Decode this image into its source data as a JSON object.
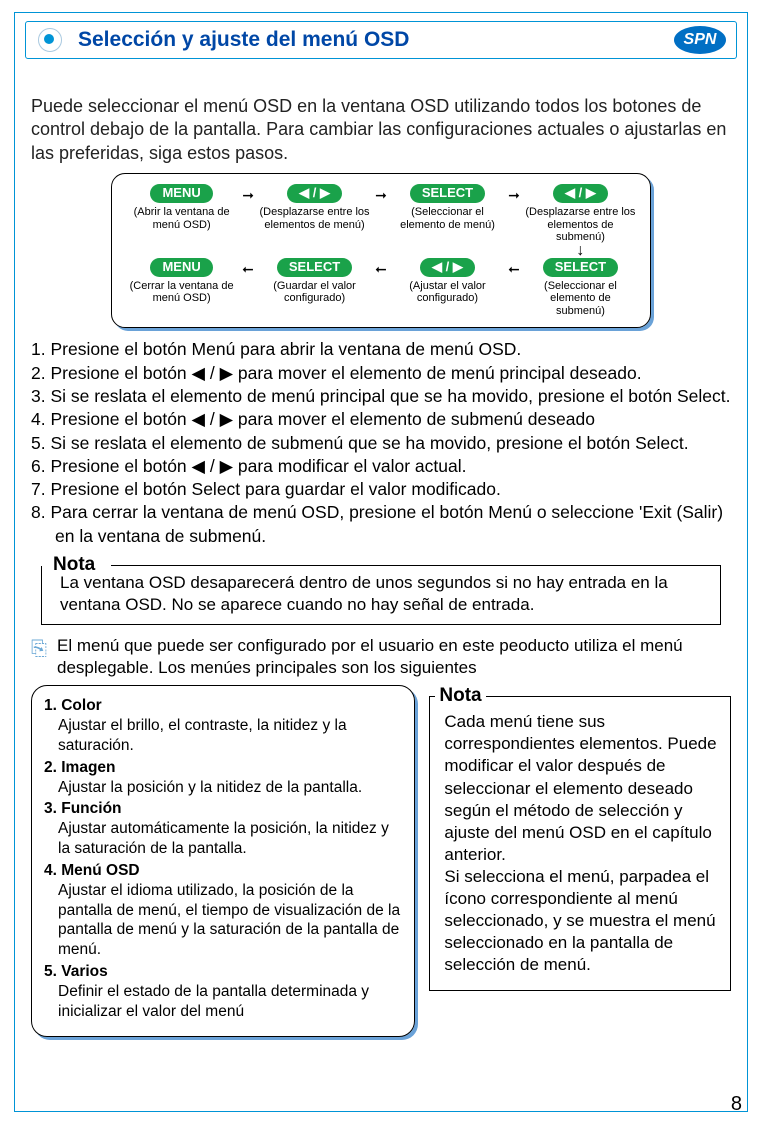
{
  "header": {
    "title": "Selección y ajuste del menú OSD",
    "lang_badge": "SPN"
  },
  "intro": "Puede seleccionar el menú OSD en la ventana OSD utilizando todos los botones de control debajo de la pantalla. Para cambiar las configuraciones actuales o ajustarlas en las preferidas, siga estos pasos.",
  "flow": {
    "row1": [
      {
        "label": "MENU",
        "caption": "(Abrir  la ventana de menú OSD)"
      },
      {
        "label": "◀ / ▶",
        "caption": "(Desplazarse entre los elementos de menú)"
      },
      {
        "label": "SELECT",
        "caption": "(Seleccionar el elemento de menú)"
      },
      {
        "label": "◀ / ▶",
        "caption": "(Desplazarse entre los elementos de submenú)"
      }
    ],
    "row2": [
      {
        "label": "MENU",
        "caption": "(Cerrar la ventana de menú OSD)"
      },
      {
        "label": "SELECT",
        "caption": "(Guardar el valor configurado)"
      },
      {
        "label": "◀ / ▶",
        "caption": "(Ajustar el valor configurado)"
      },
      {
        "label": "SELECT",
        "caption": "(Seleccionar el elemento de submenú)"
      }
    ]
  },
  "steps": [
    "1. Presione el botón Menú para abrir la ventana de menú OSD.",
    "2. Presione el botón ◀ / ▶ para mover el elemento de menú principal deseado.",
    "3. Si se reslata el elemento de menú principal que se ha movido, presione el botón Select.",
    "4. Presione el botón ◀ / ▶ para mover el elemento de submenú deseado",
    "5. Si se reslata el elemento de submenú que se ha movido, presione el botón Select.",
    "6. Presione el botón ◀ / ▶ para modificar el valor actual.",
    "7. Presione el botón Select para guardar el valor modificado.",
    "8. Para cerrar la ventana de menú OSD, presione el botón Menú o seleccione 'Exit (Salir) en la ventana de submenú."
  ],
  "nota1": {
    "label": "Nota",
    "text": "La ventana OSD desaparecerá dentro de unos segundos si no hay entrada en la ventana OSD. No se aparece cuando no hay señal de entrada."
  },
  "config_note": "El menú que puede ser configurado por el usuario en este peoducto utiliza el menú desplegable. Los menúes principales son los siguientes",
  "menu_list": [
    {
      "hd": "1. Color",
      "bd": "Ajustar el brillo, el contraste, la nitidez y la saturación."
    },
    {
      "hd": "2. Imagen",
      "bd": "Ajustar la posición y la nitidez de la pantalla."
    },
    {
      "hd": "3. Función",
      "bd": "Ajustar automáticamente la posición, la nitidez y la saturación de la pantalla."
    },
    {
      "hd": "4. Menú OSD",
      "bd": "Ajustar el idioma utilizado, la posición de la pantalla de menú, el tiempo de visualización de la pantalla de menú y la saturación de la pantalla de menú."
    },
    {
      "hd": "5. Varios",
      "bd": "Definir el estado de la pantalla determinada y inicializar el valor del menú"
    }
  ],
  "nota2": {
    "label": "Nota",
    "text": "Cada menú tiene sus correspondientes elementos. Puede modificar el valor después de seleccionar el elemento deseado según el método de selección y ajuste del menú OSD en el capítulo anterior.\nSi selecciona el menú, parpadea el ícono correspondiente al menú seleccionado, y se muestra el menú seleccionado en la pantalla de selección de menú."
  },
  "page_number": "8",
  "colors": {
    "frame": "#0094d6",
    "header_text": "#0047a6",
    "badge_bg": "#006fc4",
    "pill_bg": "#1aa24a",
    "shadow": "#6aa2d8",
    "icon": "#6ba8d6"
  }
}
